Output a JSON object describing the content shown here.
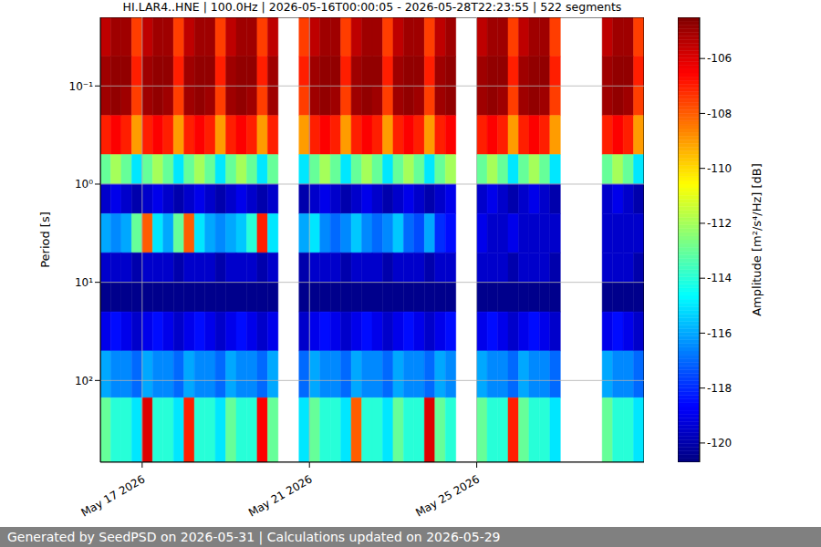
{
  "chart_data": {
    "type": "heatmap",
    "title": "HI.LAR4..HNE | 100.0Hz | 2026-05-16T00:00:05 - 2026-05-28T22:23:55 | 522 segments",
    "y_label": "Period [s]",
    "log": "y",
    "grid": true,
    "xlim": [
      16,
      29
    ],
    "xticks": [
      {
        "value": 17,
        "label": "May 17 2026"
      },
      {
        "value": 21,
        "label": "May 21 2026"
      },
      {
        "value": 25,
        "label": "May 25 2026"
      }
    ],
    "ylim": [
      0.02,
      680
    ],
    "yticks": [
      {
        "value": 0.1,
        "label": "10⁻¹"
      },
      {
        "value": 1,
        "label": "10⁰"
      },
      {
        "value": 10,
        "label": "10¹"
      },
      {
        "value": 100,
        "label": "10²"
      }
    ],
    "x_edges": [
      16,
      16.25,
      16.5,
      16.75,
      17,
      17.25,
      17.5,
      17.75,
      18,
      18.25,
      18.5,
      18.75,
      19,
      19.25,
      19.5,
      19.75,
      20,
      20.25,
      20.5,
      20.75,
      21,
      21.25,
      21.5,
      21.75,
      22,
      22.25,
      22.5,
      22.75,
      23,
      23.25,
      23.5,
      23.75,
      24,
      24.25,
      24.5,
      24.75,
      25,
      25.25,
      25.5,
      25.75,
      26,
      26.25,
      26.5,
      26.75,
      27,
      27.25,
      27.5,
      27.75,
      28,
      28.25,
      28.5,
      28.75,
      29
    ],
    "y_edges": [
      0.02,
      0.05,
      0.1,
      0.2,
      0.5,
      1,
      2,
      5,
      10,
      20,
      50,
      150,
      680
    ],
    "cells": [
      [
        -105.5,
        -105,
        -105,
        -107.5,
        -105.5,
        -105,
        -105,
        -107.5,
        -105.5,
        -105,
        -105,
        -107.5,
        -105.5,
        -105,
        -105,
        -107.5,
        -105.5,
        null,
        null,
        -107.5,
        -105.5,
        -105,
        -105,
        -107.5,
        -105.5,
        -105,
        -105,
        -107.5,
        -105.5,
        -105,
        -105,
        -107.5,
        -105.5,
        -105,
        null,
        null,
        -105.5,
        -105,
        -105,
        -107.5,
        -105.5,
        -105,
        -105,
        -107.5,
        null,
        null,
        null,
        null,
        -105.5,
        -105,
        -105,
        -107.5
      ],
      [
        -105,
        -104.8,
        -104.8,
        -107,
        -105,
        -104.8,
        -104.8,
        -107,
        -105,
        -104.8,
        -104.8,
        -107,
        -105,
        -104.8,
        -104.8,
        -107,
        -105,
        null,
        null,
        -107,
        -105,
        -104.8,
        -104.8,
        -107,
        -105,
        -104.8,
        -104.8,
        -107,
        -105,
        -104.8,
        -104.8,
        -107,
        -105,
        -104.8,
        null,
        null,
        -105,
        -104.8,
        -104.8,
        -107,
        -105,
        -104.8,
        -104.8,
        -107,
        null,
        null,
        null,
        null,
        -105,
        -104.8,
        -104.8,
        -107
      ],
      [
        -105,
        -104.8,
        -105,
        -107.5,
        -105,
        -104.8,
        -105,
        -107.5,
        -105,
        -104.8,
        -105,
        -107.5,
        -105,
        -104.8,
        -105,
        -107.5,
        -105,
        null,
        null,
        -107.5,
        -105,
        -104.8,
        -105,
        -107.5,
        -105,
        -104.8,
        -105,
        -107.5,
        -105,
        -104.8,
        -105,
        -107.5,
        -105,
        -104.8,
        null,
        null,
        -105,
        -104.8,
        -105,
        -107.5,
        -105,
        -104.8,
        -105,
        -107.5,
        null,
        null,
        null,
        null,
        -105,
        -104.8,
        -105,
        -107.5
      ],
      [
        -107,
        -106.5,
        -107,
        -109,
        -107,
        -106.5,
        -107,
        -109,
        -107,
        -106.5,
        -107,
        -109,
        -107,
        -106.5,
        -107,
        -109,
        -107,
        null,
        null,
        -109,
        -107,
        -106.5,
        -107,
        -109,
        -107,
        -106.5,
        -107,
        -109,
        -107,
        -106.5,
        -107,
        -109,
        -107,
        -106.5,
        null,
        null,
        -107,
        -106.5,
        -107,
        -109,
        -107,
        -106.5,
        -107,
        -109,
        null,
        null,
        null,
        null,
        -107,
        -106.5,
        -107,
        -109
      ],
      [
        -113,
        -112,
        -113,
        -115,
        -113,
        -112,
        -113,
        -115,
        -113,
        -112,
        -113,
        -115,
        -113,
        -112,
        -113,
        -115,
        -113,
        null,
        null,
        -115,
        -113,
        -112,
        -113,
        -115,
        -113,
        -112,
        -113,
        -115,
        -113,
        -112,
        -113,
        -115,
        -113,
        -112,
        null,
        null,
        -113,
        -112,
        -113,
        -115,
        -113,
        -112,
        -113,
        -115,
        null,
        null,
        null,
        null,
        -113,
        -112,
        -113,
        -115
      ],
      [
        -119.5,
        -119,
        -119.5,
        -120,
        -119.5,
        -119,
        -119.5,
        -120,
        -119.5,
        -119,
        -119.5,
        -120,
        -119.5,
        -119,
        -119.5,
        -120,
        -119.5,
        null,
        null,
        -120,
        -119.5,
        -119,
        -119.5,
        -120,
        -119.5,
        -119,
        -119.5,
        -120,
        -119.5,
        -119,
        -119.5,
        -120,
        -119.5,
        -119,
        null,
        null,
        -119.5,
        -119,
        -119.5,
        -120,
        -119.5,
        -119,
        -119.5,
        -120,
        null,
        null,
        null,
        null,
        -119.5,
        -119,
        -119.5,
        -120
      ],
      [
        -116,
        -116.5,
        -116,
        -113,
        -108,
        -115,
        -116,
        -113,
        -108,
        -115,
        -116,
        -116.5,
        -116,
        -115.5,
        -114,
        -107,
        -115,
        null,
        null,
        -116,
        -115,
        -116.5,
        -117,
        -116.5,
        -115.5,
        -116.5,
        -117,
        -116.5,
        -115.5,
        -117,
        -117.5,
        -116,
        -118,
        -118.5,
        null,
        null,
        -119,
        -119.5,
        -119.5,
        -119,
        -119.5,
        -119.5,
        -119.5,
        -119.5,
        null,
        null,
        null,
        null,
        -119.5,
        -119.5,
        -119.5,
        -119.5
      ],
      [
        -119.5,
        -119.5,
        -119.5,
        -120,
        -119.5,
        -119.5,
        -119.5,
        -120,
        -119.5,
        -119.5,
        -119.5,
        -120,
        -119.5,
        -119.5,
        -119.5,
        -120,
        -119.5,
        null,
        null,
        -120,
        -119.5,
        -119.5,
        -119.5,
        -120,
        -119.5,
        -119.5,
        -119.5,
        -120,
        -119.5,
        -119.5,
        -119.5,
        -120,
        -119.5,
        -119.5,
        null,
        null,
        -119.5,
        -119.5,
        -119.5,
        -120,
        -119.5,
        -119.5,
        -119.5,
        -120,
        null,
        null,
        null,
        null,
        -119.5,
        -119.5,
        -119.5,
        -120
      ],
      [
        -120.5,
        -120.5,
        -120.5,
        -120.5,
        -120.5,
        -120.5,
        -120.5,
        -120.5,
        -120.5,
        -120.5,
        -120.5,
        -120.5,
        -120.5,
        -120.5,
        -120.5,
        -120.5,
        -120.5,
        null,
        null,
        -120.5,
        -120.5,
        -120.5,
        -120.5,
        -120.5,
        -120.5,
        -120.5,
        -120.5,
        -120.5,
        -120.5,
        -120.5,
        -120.5,
        -120.5,
        -120.5,
        -120.5,
        null,
        null,
        -120.5,
        -120.5,
        -120.5,
        -120.5,
        -120.5,
        -120.5,
        -120.5,
        -120.5,
        null,
        null,
        null,
        null,
        -120.5,
        -120.5,
        -120.5,
        -120.5
      ],
      [
        -119,
        -118.5,
        -119,
        -119.5,
        -119,
        -118.5,
        -119,
        -119.5,
        -119,
        -118.5,
        -119,
        -119.5,
        -119,
        -118.5,
        -119,
        -119.5,
        -119,
        null,
        null,
        -119.5,
        -119,
        -118.5,
        -119,
        -119.5,
        -119,
        -118.5,
        -119,
        -119.5,
        -119,
        -118.5,
        -119,
        -119.5,
        -119,
        -118.5,
        null,
        null,
        -119,
        -118.5,
        -119,
        -119.5,
        -119,
        -118.5,
        -119,
        -119.5,
        null,
        null,
        null,
        null,
        -119,
        -118.5,
        -119,
        -119.5
      ],
      [
        -116,
        -116.5,
        -116.5,
        -117,
        -116,
        -116.5,
        -116.5,
        -117,
        -116,
        -116.5,
        -116.5,
        -117,
        -116,
        -116.5,
        -116.5,
        -117,
        -116,
        null,
        null,
        -117,
        -116,
        -116.5,
        -116.5,
        -117,
        -116,
        -116.5,
        -116.5,
        -117,
        -116,
        -116.5,
        -116.5,
        -117,
        -116,
        -116.5,
        null,
        null,
        -116,
        -116.5,
        -116.5,
        -117,
        -116,
        -116.5,
        -116.5,
        -117,
        null,
        null,
        null,
        null,
        -116,
        -116.5,
        -116.5,
        -117
      ],
      [
        -113,
        -114,
        -114,
        -115,
        -106,
        -114,
        -114,
        -115,
        -107,
        -114,
        -114,
        -115,
        -113,
        -114,
        -114,
        -106.5,
        -113,
        null,
        null,
        -115,
        -113,
        -114,
        -114,
        -115,
        -108,
        -114,
        -114,
        -115,
        -113,
        -114,
        -114,
        -106,
        -113,
        -114,
        null,
        null,
        -113,
        -114,
        -114,
        -107,
        -113,
        -114,
        -114,
        -115,
        null,
        null,
        null,
        null,
        -113,
        -114,
        -114,
        -115
      ]
    ],
    "colorbar": {
      "label": "Amplitude [m²/s⁴/Hz] [dB]",
      "range": [
        -120.7,
        -104.5
      ],
      "ticks": [
        -106,
        -108,
        -110,
        -112,
        -114,
        -116,
        -118,
        -120
      ]
    }
  },
  "footer": "Generated by SeedPSD on 2026-05-31 | Calculations updated on 2026-05-29"
}
